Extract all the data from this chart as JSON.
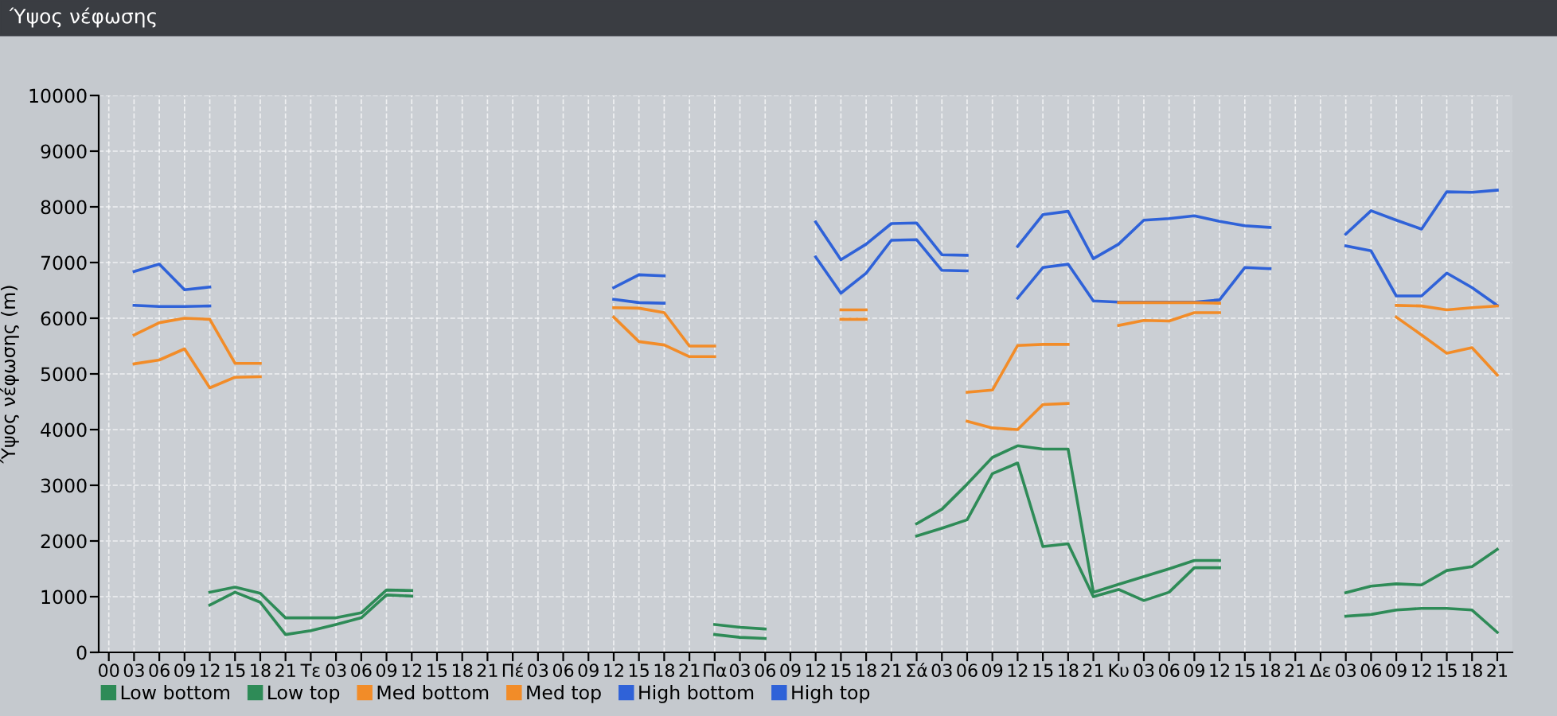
{
  "chart_data": {
    "type": "line",
    "title": "Ύψος νέφωσης",
    "ylabel": "Ύψος νέφωσης (m)",
    "categories": [
      "00",
      "03",
      "06",
      "09",
      "12",
      "15",
      "18",
      "21",
      "Τε",
      "03",
      "06",
      "09",
      "12",
      "15",
      "18",
      "21",
      "Πέ",
      "03",
      "06",
      "09",
      "12",
      "15",
      "18",
      "21",
      "Πα",
      "03",
      "06",
      "09",
      "12",
      "15",
      "18",
      "21",
      "Σά",
      "03",
      "06",
      "09",
      "12",
      "15",
      "18",
      "21",
      "Κυ",
      "03",
      "06",
      "09",
      "12",
      "15",
      "18",
      "21",
      "Δε",
      "03",
      "06",
      "09",
      "12",
      "15",
      "18",
      "21"
    ],
    "ylim": [
      0,
      10000
    ],
    "yticks": [
      0,
      1000,
      2000,
      3000,
      4000,
      5000,
      6000,
      7000,
      8000,
      9000,
      10000
    ],
    "grid": true,
    "legend": "bottom",
    "marker": "none",
    "line_style": "solid",
    "series": [
      {
        "name": "Low bottom",
        "color": "#2e8b57",
        "values": [
          null,
          null,
          null,
          null,
          850,
          1080,
          900,
          320,
          390,
          500,
          620,
          1030,
          1010,
          null,
          null,
          null,
          null,
          null,
          null,
          null,
          null,
          null,
          null,
          null,
          320,
          270,
          250,
          null,
          null,
          null,
          null,
          null,
          2090,
          2230,
          2380,
          3210,
          3400,
          1900,
          1950,
          1000,
          1130,
          930,
          1080,
          1520,
          1520,
          null,
          null,
          null,
          null,
          650,
          680,
          760,
          790,
          790,
          760,
          360
        ]
      },
      {
        "name": "Low top",
        "color": "#2e8b57",
        "values": [
          null,
          null,
          null,
          null,
          1080,
          1170,
          1060,
          620,
          620,
          620,
          710,
          1120,
          1110,
          null,
          null,
          null,
          null,
          null,
          null,
          null,
          null,
          null,
          null,
          null,
          500,
          450,
          420,
          null,
          null,
          null,
          null,
          null,
          2310,
          2570,
          3020,
          3500,
          3710,
          3650,
          3650,
          1080,
          1220,
          1360,
          1500,
          1650,
          1650,
          null,
          null,
          null,
          null,
          1070,
          1190,
          1230,
          1210,
          1470,
          1540,
          1850
        ]
      },
      {
        "name": "Med bottom",
        "color": "#f28c28",
        "values": [
          null,
          5180,
          5250,
          5450,
          4750,
          4940,
          4950,
          null,
          null,
          null,
          null,
          null,
          null,
          null,
          null,
          null,
          null,
          null,
          null,
          null,
          6020,
          5580,
          5520,
          5310,
          5310,
          null,
          null,
          null,
          null,
          5980,
          5980,
          null,
          null,
          null,
          4150,
          4030,
          4000,
          4450,
          4470,
          null,
          5870,
          5960,
          5950,
          6100,
          6100,
          null,
          null,
          null,
          null,
          null,
          null,
          6020,
          5700,
          5370,
          5470,
          4980
        ]
      },
      {
        "name": "Med top",
        "color": "#f28c28",
        "values": [
          null,
          5700,
          5920,
          6000,
          5980,
          5190,
          5190,
          null,
          null,
          null,
          null,
          null,
          null,
          null,
          null,
          null,
          null,
          null,
          null,
          null,
          6190,
          6180,
          6100,
          5500,
          5500,
          null,
          null,
          null,
          null,
          6150,
          6150,
          null,
          null,
          null,
          4670,
          4710,
          5510,
          5530,
          5530,
          null,
          6280,
          6280,
          6280,
          6280,
          6270,
          null,
          null,
          null,
          null,
          null,
          null,
          6230,
          6220,
          6150,
          6190,
          6220
        ]
      },
      {
        "name": "High bottom",
        "color": "#2f62d8",
        "values": [
          null,
          6230,
          6210,
          6210,
          6220,
          null,
          null,
          null,
          null,
          null,
          null,
          null,
          null,
          null,
          null,
          null,
          null,
          null,
          null,
          null,
          6340,
          6280,
          6270,
          null,
          null,
          null,
          null,
          null,
          7100,
          6450,
          6810,
          7400,
          7410,
          6860,
          6850,
          null,
          6360,
          6910,
          6970,
          6310,
          6290,
          6290,
          6290,
          6290,
          6330,
          6910,
          6890,
          null,
          null,
          7300,
          7210,
          6400,
          6400,
          6810,
          6550,
          6230
        ]
      },
      {
        "name": "High top",
        "color": "#2f62d8",
        "values": [
          null,
          6840,
          6970,
          6510,
          6560,
          null,
          null,
          null,
          null,
          null,
          null,
          null,
          null,
          null,
          null,
          null,
          null,
          null,
          null,
          null,
          6550,
          6780,
          6760,
          null,
          null,
          null,
          null,
          null,
          7730,
          7050,
          7330,
          7700,
          7710,
          7140,
          7130,
          null,
          7290,
          7860,
          7920,
          7070,
          7330,
          7760,
          7790,
          7840,
          7740,
          7660,
          7630,
          null,
          null,
          7510,
          7930,
          7760,
          7600,
          8270,
          8260,
          8300
        ]
      }
    ]
  }
}
